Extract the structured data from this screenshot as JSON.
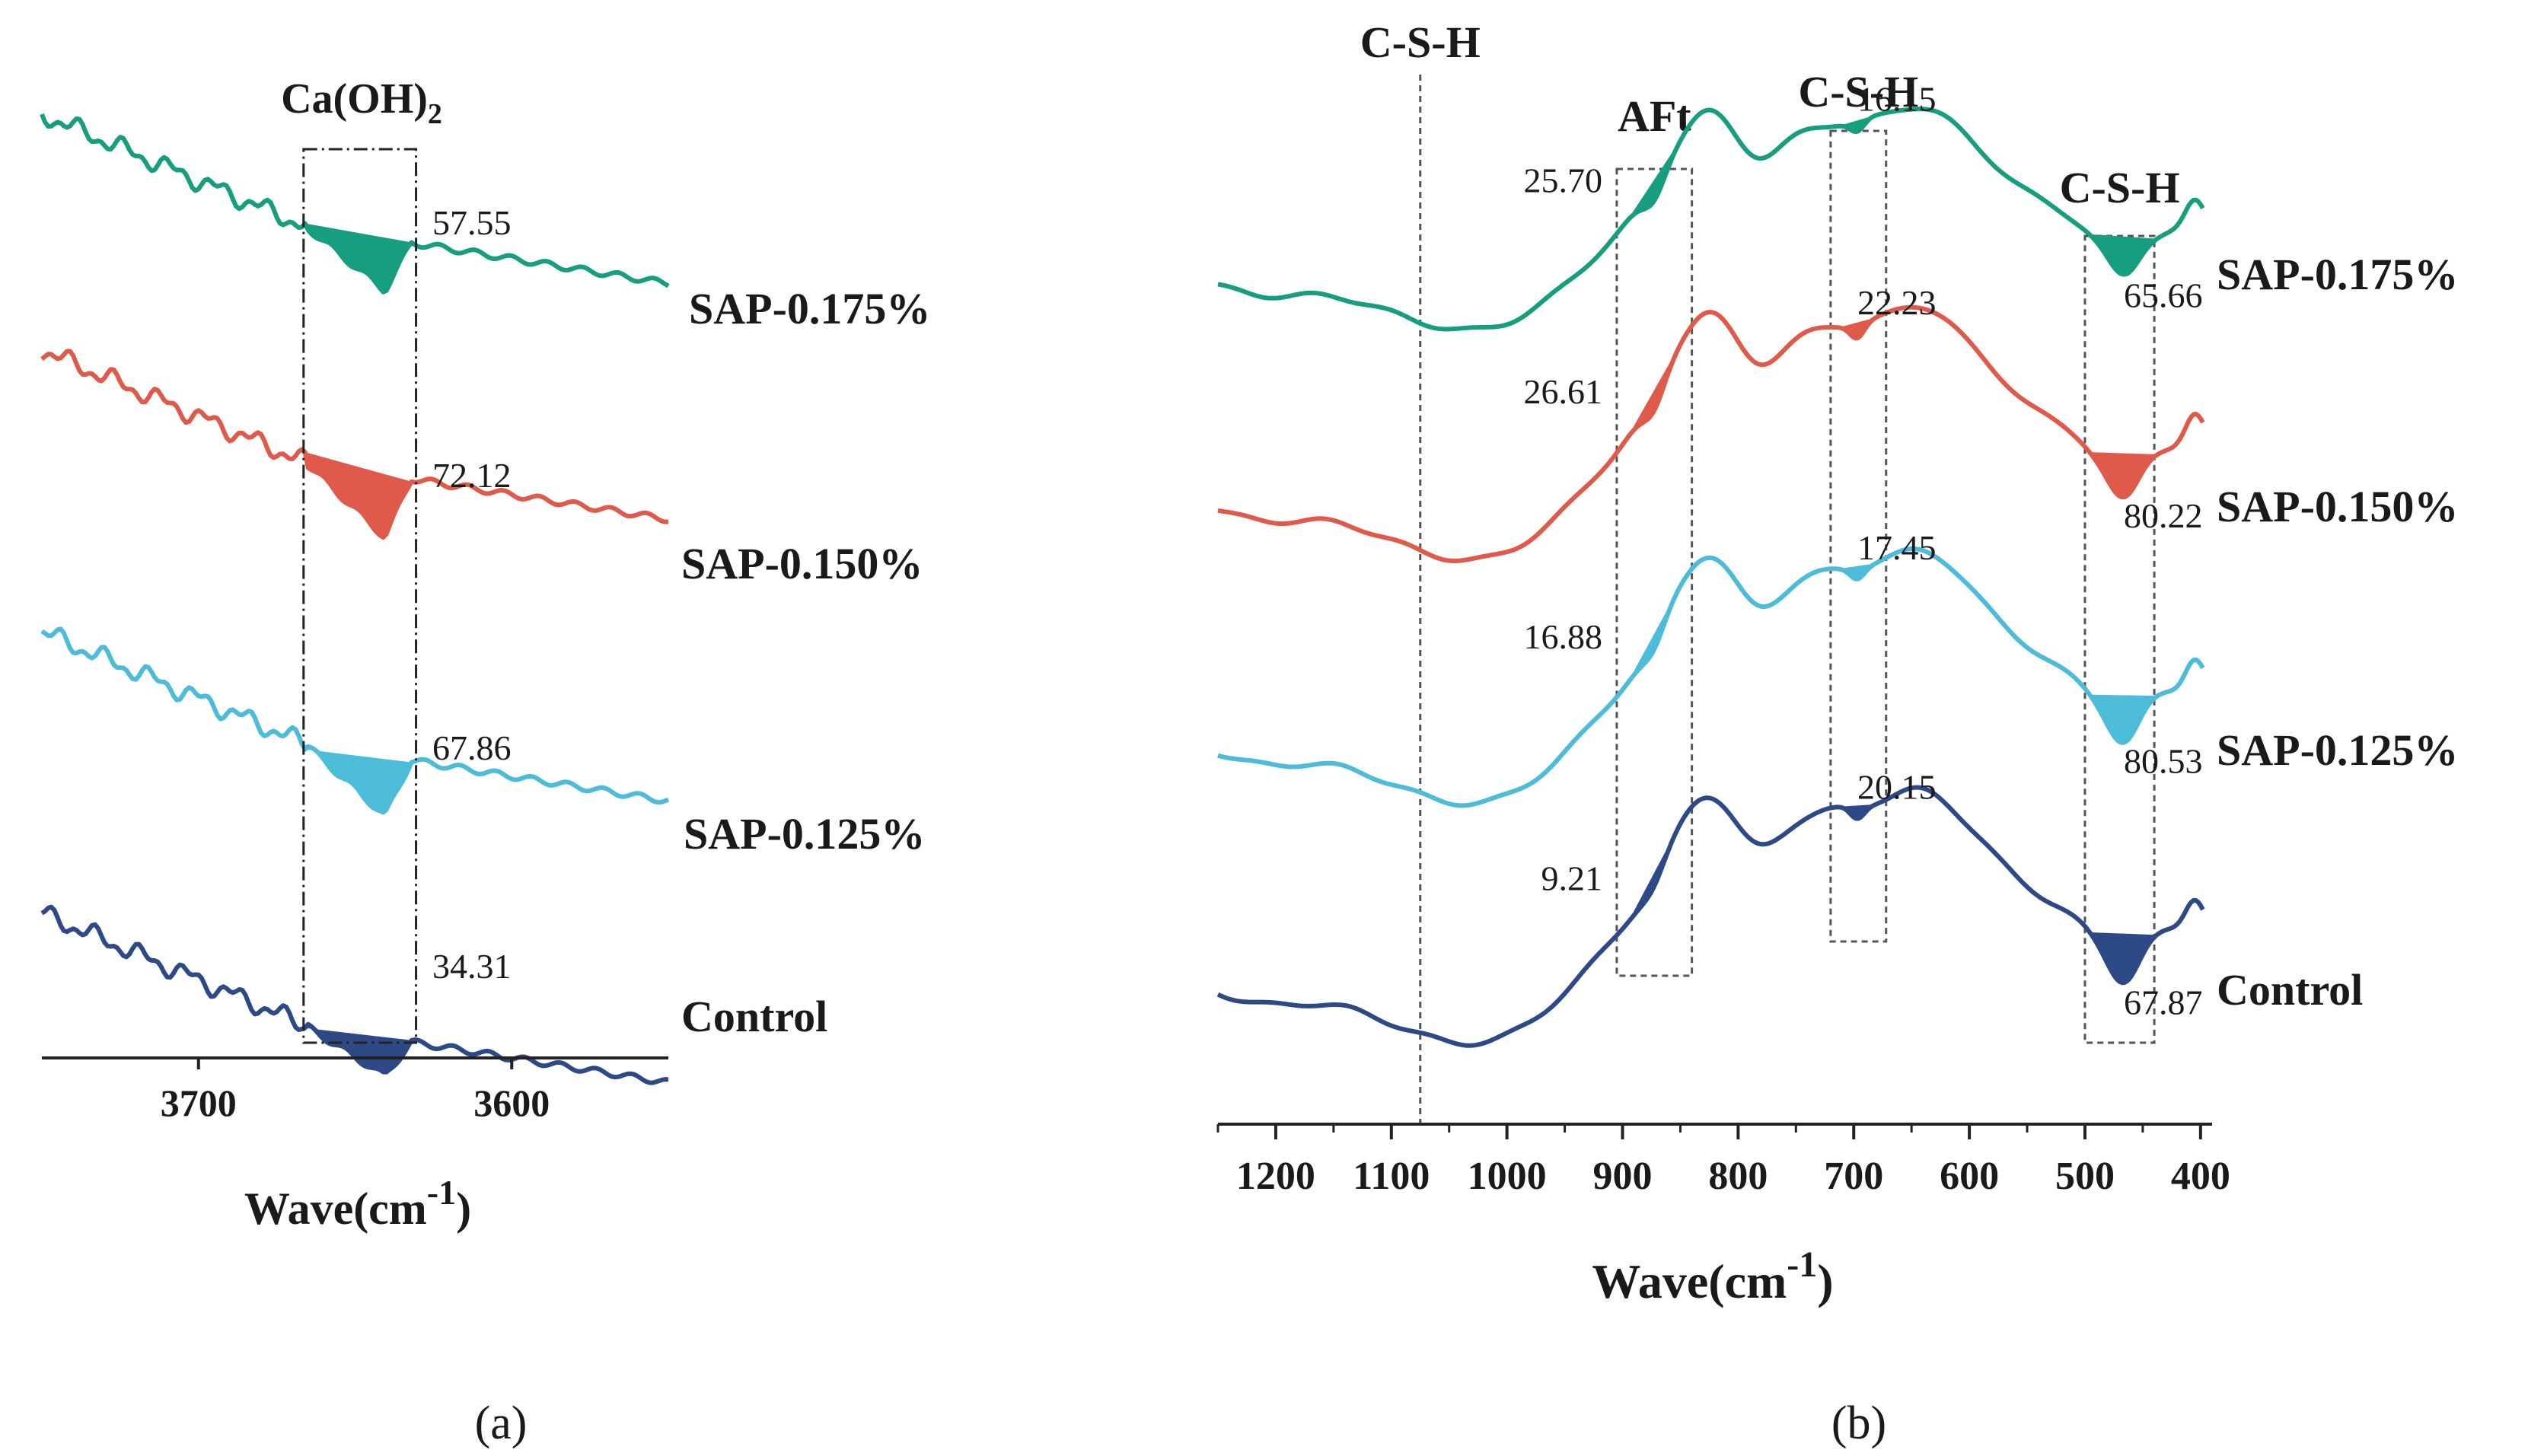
{
  "chart_data": [
    {
      "type": "line",
      "panel": "(a)",
      "xlabel": "Wave(cm",
      "xlabel_sup": "-1",
      "xlabel_close": ")",
      "xlim": [
        3750,
        3550
      ],
      "ticks": [
        3700,
        3600
      ],
      "box_label": "Ca(OH)",
      "box_label_sub": "2",
      "box_range": [
        3665,
        3632
      ],
      "series": [
        {
          "name": "SAP-0.175%",
          "color": "#169e7e",
          "band": [
            3666,
            3632
          ],
          "peak": 3641,
          "value": "57.55",
          "offset": 0
        },
        {
          "name": "SAP-0.150%",
          "color": "#e05a4b",
          "band": [
            3666,
            3632
          ],
          "peak": 3641,
          "value": "72.12",
          "offset": 1
        },
        {
          "name": "SAP-0.125%",
          "color": "#4cbcd8",
          "band": [
            3666,
            3632
          ],
          "peak": 3641,
          "value": "67.86",
          "offset": 2
        },
        {
          "name": "Control",
          "color": "#2e4a86",
          "band": [
            3666,
            3632
          ],
          "peak": 3641,
          "value": "34.31",
          "offset": 3
        }
      ]
    },
    {
      "type": "line",
      "panel": "(b)",
      "xlabel": "Wave(cm",
      "xlabel_sup": "-1",
      "xlabel_close": ")",
      "xlim": [
        1250,
        390
      ],
      "ticks": [
        1200,
        1100,
        1000,
        900,
        800,
        700,
        600,
        500,
        400
      ],
      "regions": [
        {
          "label": "C-S-H",
          "kind": "line",
          "x": 1075
        },
        {
          "label": "AFt",
          "kind": "box",
          "range": [
            905,
            840
          ]
        },
        {
          "label": "C-S-H",
          "kind": "box",
          "range": [
            720,
            672
          ]
        },
        {
          "label": "C-S-H",
          "kind": "box",
          "range": [
            500,
            440
          ]
        }
      ],
      "series": [
        {
          "name": "SAP-0.175%",
          "color": "#169e7e",
          "offset": 0,
          "afc": "25.70",
          "csh_mid": "16.15",
          "csh_low": "65.66"
        },
        {
          "name": "SAP-0.150%",
          "color": "#e05a4b",
          "offset": 1,
          "afc": "26.61",
          "csh_mid": "22.23",
          "csh_low": "80.22"
        },
        {
          "name": "SAP-0.125%",
          "color": "#4cbcd8",
          "offset": 2,
          "afc": "16.88",
          "csh_mid": "17.45",
          "csh_low": "80.53"
        },
        {
          "name": "Control",
          "color": "#2e4a86",
          "offset": 3,
          "afc": "9.21",
          "csh_mid": "20.15",
          "csh_low": "67.87"
        }
      ]
    }
  ]
}
